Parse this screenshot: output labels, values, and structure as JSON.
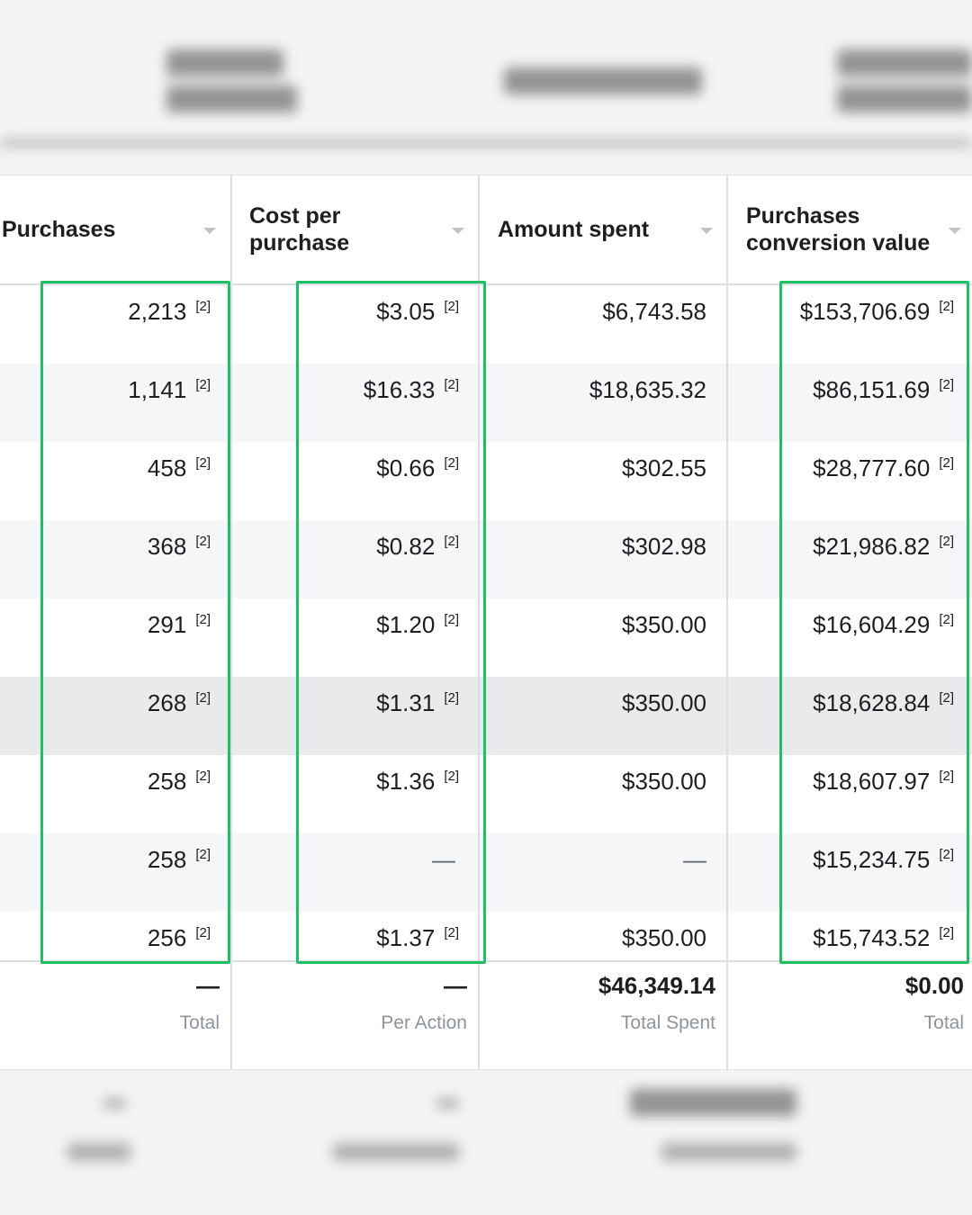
{
  "columns": [
    {
      "label": "Purchases"
    },
    {
      "label": "Cost per\npurchase"
    },
    {
      "label": "Amount spent"
    },
    {
      "label": "Purchases\nconversion value"
    }
  ],
  "rows": [
    {
      "purchases": "2,213",
      "cost_per_purchase": "$3.05",
      "amount_spent": "$6,743.58",
      "conversion_value": "$153,706.69"
    },
    {
      "purchases": "1,141",
      "cost_per_purchase": "$16.33",
      "amount_spent": "$18,635.32",
      "conversion_value": "$86,151.69"
    },
    {
      "purchases": "458",
      "cost_per_purchase": "$0.66",
      "amount_spent": "$302.55",
      "conversion_value": "$28,777.60"
    },
    {
      "purchases": "368",
      "cost_per_purchase": "$0.82",
      "amount_spent": "$302.98",
      "conversion_value": "$21,986.82"
    },
    {
      "purchases": "291",
      "cost_per_purchase": "$1.20",
      "amount_spent": "$350.00",
      "conversion_value": "$16,604.29"
    },
    {
      "purchases": "268",
      "cost_per_purchase": "$1.31",
      "amount_spent": "$350.00",
      "conversion_value": "$18,628.84"
    },
    {
      "purchases": "258",
      "cost_per_purchase": "$1.36",
      "amount_spent": "$350.00",
      "conversion_value": "$18,607.97"
    },
    {
      "purchases": "258",
      "cost_per_purchase": "—",
      "amount_spent": "—",
      "conversion_value": "$15,234.75"
    },
    {
      "purchases": "256",
      "cost_per_purchase": "$1.37",
      "amount_spent": "$350.00",
      "conversion_value": "$15,743.52"
    }
  ],
  "reference_marker": "[2]",
  "footer": [
    {
      "value": "—",
      "label": "Total"
    },
    {
      "value": "—",
      "label": "Per Action"
    },
    {
      "value": "$46,349.14",
      "label": "Total Spent"
    },
    {
      "value": "$0.00",
      "label": "Total"
    }
  ],
  "colors": {
    "highlight": "#1fbf63",
    "row_shade": "#f5f6f7",
    "row_hover": "#e9eaeb",
    "divider": "#dadde1",
    "muted_text": "#8d949e"
  },
  "icons": {
    "sort": "chevron-down-icon"
  }
}
